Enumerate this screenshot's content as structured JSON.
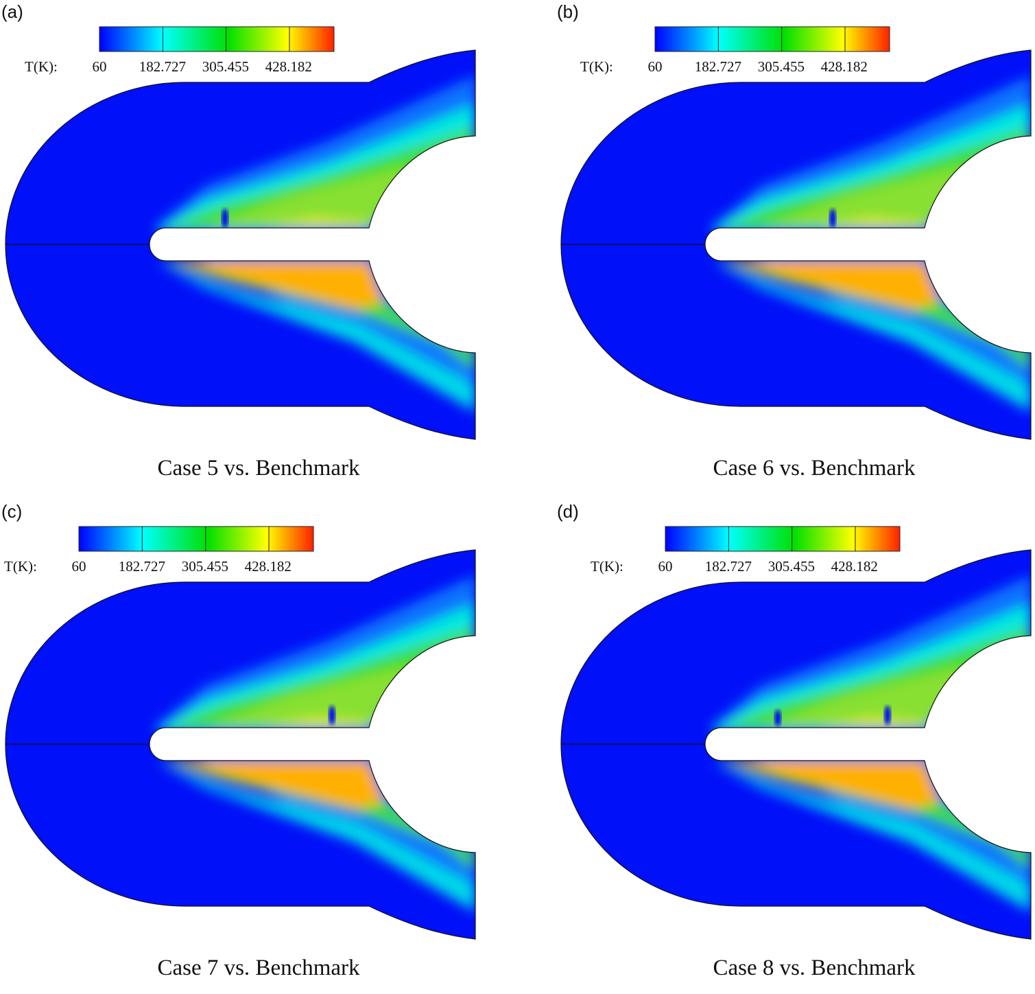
{
  "colorbar": {
    "label": "T(K):",
    "ticks": [
      "60",
      "182.727",
      "305.455",
      "428.182"
    ],
    "colors": [
      "#0000ff",
      "#00ffff",
      "#00e000",
      "#ffff00",
      "#ff2000"
    ]
  },
  "panels": [
    {
      "label": "(a)",
      "caption": "Case 5 vs. Benchmark"
    },
    {
      "label": "(b)",
      "caption": "Case 6 vs. Benchmark"
    },
    {
      "label": "(c)",
      "caption": "Case 7 vs. Benchmark"
    },
    {
      "label": "(d)",
      "caption": "Case 8 vs. Benchmark"
    }
  ]
}
